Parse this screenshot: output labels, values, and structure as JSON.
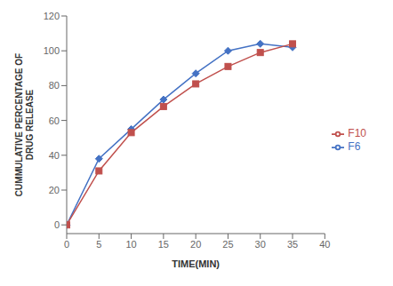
{
  "chart_data": {
    "type": "line",
    "xlabel": "TIME(MIN)",
    "ylabel": "CUMMULATIVE PERCENTAGE OF\nDRUG RELEASE",
    "x": [
      0,
      5,
      10,
      15,
      20,
      25,
      30,
      35
    ],
    "series": [
      {
        "name": "F6",
        "color": "#4472C4",
        "marker": "diamond",
        "values": [
          0,
          38,
          55,
          72,
          87,
          100,
          104,
          102
        ]
      },
      {
        "name": "F10",
        "color": "#C0504D",
        "marker": "square",
        "values": [
          0,
          31,
          53,
          68,
          81,
          91,
          99,
          104
        ]
      }
    ],
    "xlim": [
      0,
      40
    ],
    "ylim": [
      -5,
      120
    ],
    "xticks": [
      0,
      5,
      10,
      15,
      20,
      25,
      30,
      35,
      40
    ],
    "yticks": [
      0,
      20,
      40,
      60,
      80,
      100,
      120
    ],
    "grid": false,
    "legend": "right"
  }
}
